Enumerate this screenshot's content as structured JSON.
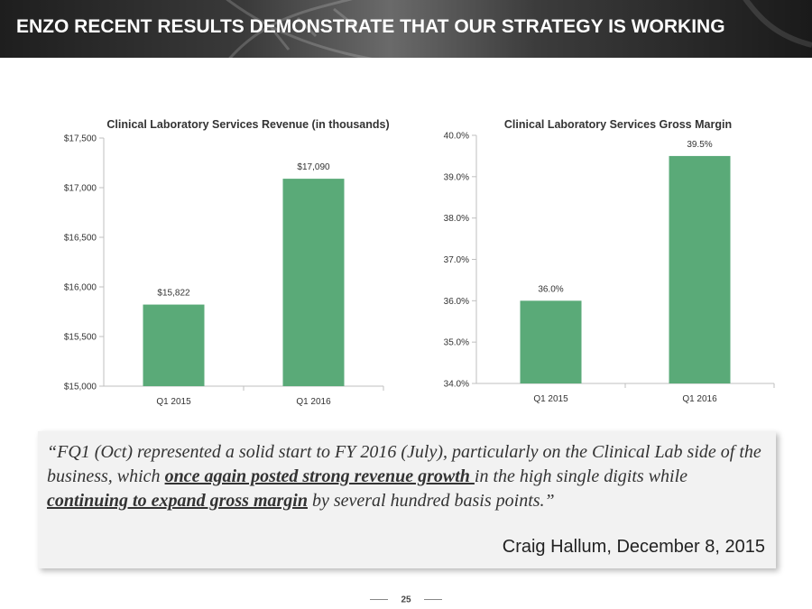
{
  "header": {
    "title": "ENZO RECENT RESULTS DEMONSTRATE THAT OUR STRATEGY IS WORKING"
  },
  "colors": {
    "bar": "#5aaa78",
    "header_bg": "#2a2a2a"
  },
  "chart_data": [
    {
      "type": "bar",
      "title": "Clinical Laboratory Services Revenue (in thousands)",
      "categories": [
        "Q1 2015",
        "Q1 2016"
      ],
      "values": [
        15822,
        17090
      ],
      "data_labels": [
        "$15,822",
        "$17,090"
      ],
      "ylim": [
        15000,
        17500
      ],
      "yticks": [
        15000,
        15500,
        16000,
        16500,
        17000,
        17500
      ],
      "ytick_labels": [
        "$15,000",
        "$15,500",
        "$16,000",
        "$16,500",
        "$17,000",
        "$17,500"
      ],
      "xlabel": "",
      "ylabel": "",
      "grid": false
    },
    {
      "type": "bar",
      "title": "Clinical Laboratory Services Gross Margin",
      "categories": [
        "Q1 2015",
        "Q1 2016"
      ],
      "values": [
        36.0,
        39.5
      ],
      "data_labels": [
        "36.0%",
        "39.5%"
      ],
      "ylim": [
        34.0,
        40.0
      ],
      "yticks": [
        34,
        35,
        36,
        37,
        38,
        39,
        40
      ],
      "ytick_labels": [
        "34.0%",
        "35.0%",
        "36.0%",
        "37.0%",
        "38.0%",
        "39.0%",
        "40.0%"
      ],
      "xlabel": "",
      "ylabel": "",
      "grid": false
    }
  ],
  "quote": {
    "part1": "“FQ1 (Oct) represented a solid start to FY 2016 (July), particularly on the Clinical Lab side of the business, which ",
    "highlight1": "once again posted strong revenue growth ",
    "part2": "in the high single digits while ",
    "highlight2": "continuing to expand gross margin",
    "part3": " by several hundred basis points.”",
    "attribution": "Craig Hallum, December 8, 2015"
  },
  "footer": {
    "page_number": "25"
  }
}
